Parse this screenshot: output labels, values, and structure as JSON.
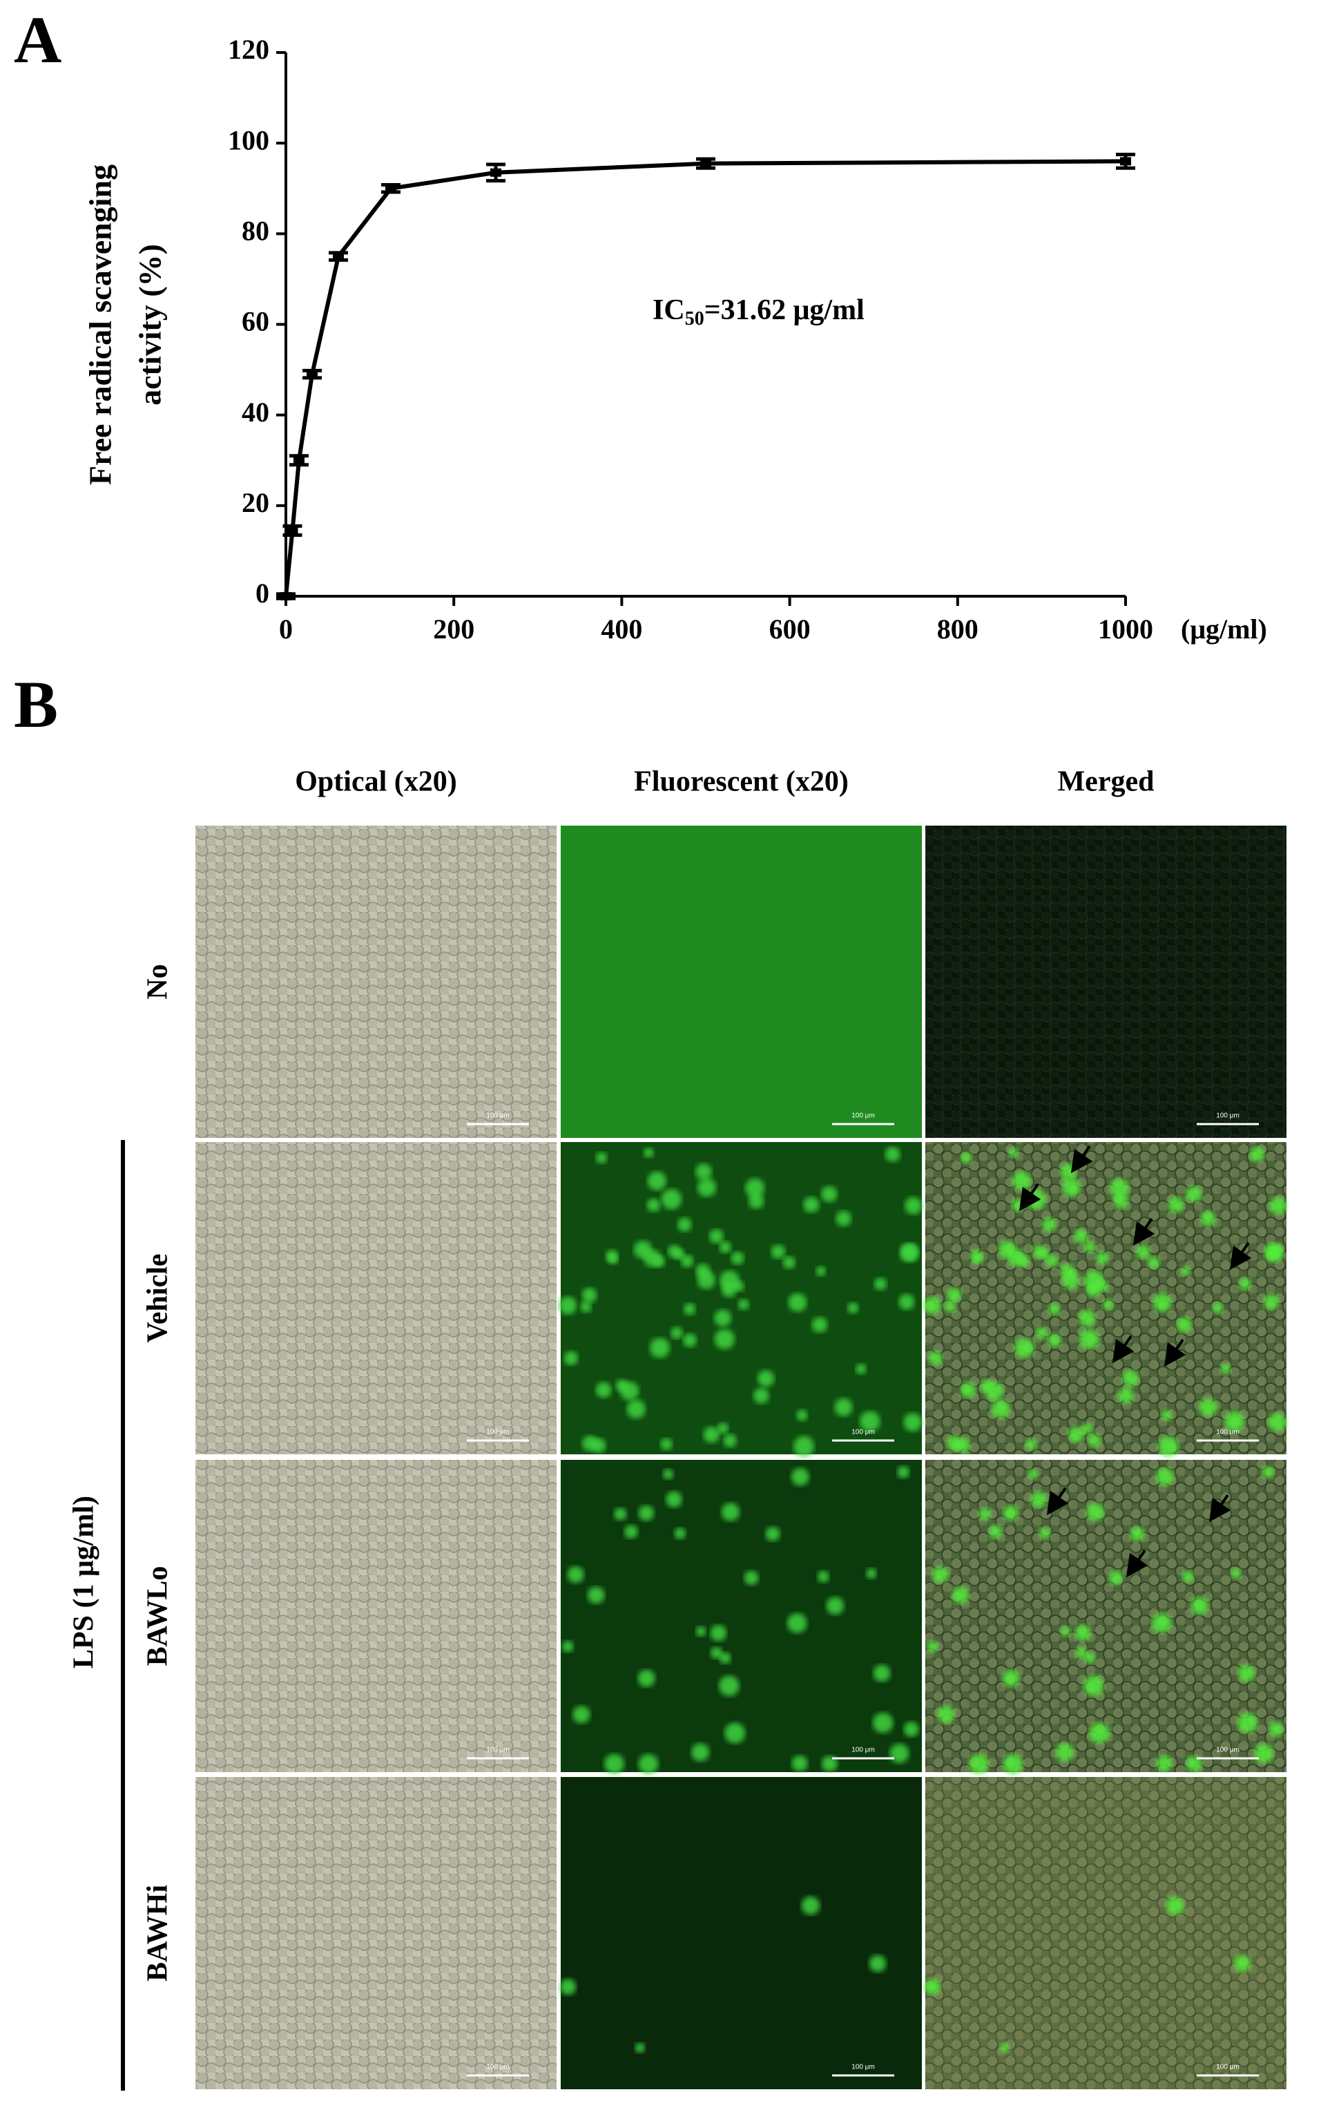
{
  "chart_data": {
    "type": "line",
    "ylabel": [
      "Free radical scavenging",
      "activity (%)"
    ],
    "xlabel": "(μg/ml)",
    "annotation": {
      "text": "IC",
      "subscript": "50",
      "rest": "=31.62 μg/ml"
    },
    "x": [
      0,
      7.8,
      15.6,
      31.25,
      62.5,
      125,
      250,
      500,
      1000
    ],
    "series": [
      {
        "color": "#000000",
        "values": [
          0,
          14.5,
          30,
          49,
          75,
          90,
          93.5,
          95.5,
          96
        ],
        "errors": [
          0.5,
          1,
          1,
          0.8,
          0.8,
          0.8,
          1.8,
          1,
          1.5
        ]
      }
    ],
    "xlim": [
      0,
      1000
    ],
    "ylim": [
      0,
      120
    ],
    "xticks": [
      0,
      200,
      400,
      600,
      800,
      1000
    ],
    "yticks": [
      0,
      20,
      40,
      60,
      80,
      100,
      120
    ]
  },
  "panel_labels": [
    "A",
    "B"
  ],
  "micrographs": {
    "columns": [
      "Optical (x20)",
      "Fluorescent (x20)",
      "Merged"
    ],
    "rows": [
      "No",
      "Vehicle",
      "BAWLo",
      "BAWHi"
    ],
    "group_label": "LPS (1 μg/ml)",
    "scale_bar": "100 μm"
  }
}
